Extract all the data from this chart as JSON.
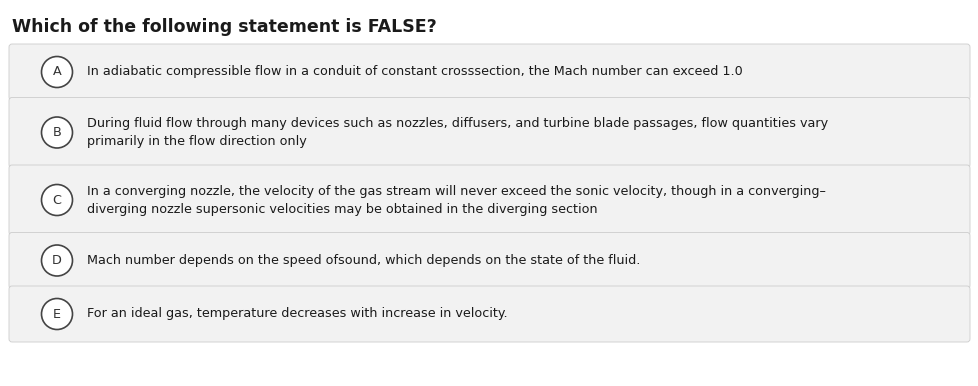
{
  "title": "Which of the following statement is FALSE?",
  "title_fontsize": 12.5,
  "title_fontweight": "bold",
  "background_color": "#ffffff",
  "option_bg_color": "#f2f2f2",
  "option_border_color": "#cccccc",
  "circle_edge_color": "#444444",
  "circle_face_color": "#ffffff",
  "text_color": "#1a1a1a",
  "label_color": "#333333",
  "options": [
    {
      "label": "A",
      "text": "In adiabatic compressible flow in a conduit of constant crosssection, the Mach number can exceed 1.0",
      "two_line": false
    },
    {
      "label": "B",
      "text": "During fluid flow through many devices such as nozzles, diffusers, and turbine blade passages, flow quantities vary\nprimarily in the flow direction only",
      "two_line": true
    },
    {
      "label": "C",
      "text": "In a converging nozzle, the velocity of the gas stream will never exceed the sonic velocity, though in a converging–\ndiverging nozzle supersonic velocities may be obtained in the diverging section",
      "two_line": true
    },
    {
      "label": "D",
      "text": "Mach number depends on the speed ofsound, which depends on the state of the fluid.",
      "two_line": false
    },
    {
      "label": "E",
      "text": "For an ideal gas, temperature decreases with increase in velocity.",
      "two_line": false
    }
  ],
  "option_text_fontsize": 9.2,
  "label_fontsize": 9.2,
  "fig_width": 9.79,
  "fig_height": 3.86,
  "dpi": 100
}
